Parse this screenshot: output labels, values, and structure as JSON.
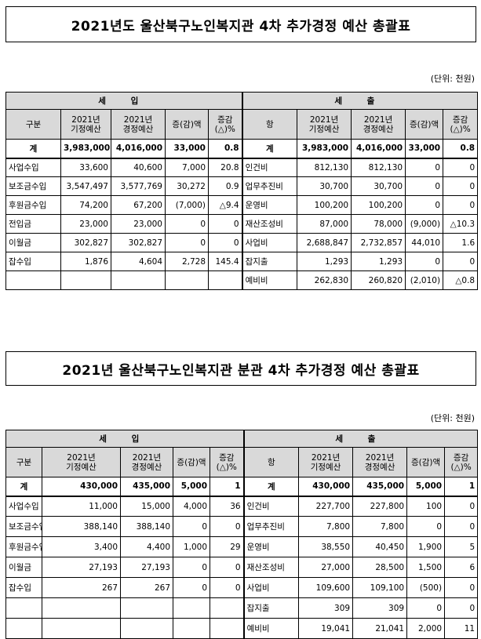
{
  "unit_label": "(단위: 천원)",
  "sections": [
    {
      "title": "2021년도 울산북구노인복지관 4차 추가경정 예산 총괄표",
      "unit": "(단위: 천원)",
      "income_header": "세 입",
      "expense_header": "세 출",
      "columns": {
        "category": "구분",
        "item": "항",
        "orig": "2021년\n기정예산",
        "revised": "2021년\n경정예산",
        "diff": "증(감)액",
        "pct": "증감\n(△)%"
      },
      "total": {
        "label": "계",
        "orig": "3,983,000",
        "revised": "4,016,000",
        "diff": "33,000",
        "pct": "0.8",
        "e_label": "계",
        "e_orig": "3,983,000",
        "e_revised": "4,016,000",
        "e_diff": "33,000",
        "e_pct": "0.8"
      },
      "rows": [
        {
          "i_name": "사업수입",
          "i_orig": "33,600",
          "i_rev": "40,600",
          "i_diff": "7,000",
          "i_pct": "20.8",
          "e_name": "인건비",
          "e_orig": "812,130",
          "e_rev": "812,130",
          "e_diff": "0",
          "e_pct": "0"
        },
        {
          "i_name": "보조금수입",
          "i_orig": "3,547,497",
          "i_rev": "3,577,769",
          "i_diff": "30,272",
          "i_pct": "0.9",
          "e_name": "업무추진비",
          "e_orig": "30,700",
          "e_rev": "30,700",
          "e_diff": "0",
          "e_pct": "0"
        },
        {
          "i_name": "후원금수입",
          "i_orig": "74,200",
          "i_rev": "67,200",
          "i_diff": "(7,000)",
          "i_pct": "△9.4",
          "e_name": "운영비",
          "e_orig": "100,200",
          "e_rev": "100,200",
          "e_diff": "0",
          "e_pct": "0"
        },
        {
          "i_name": "전입금",
          "i_orig": "23,000",
          "i_rev": "23,000",
          "i_diff": "0",
          "i_pct": "0",
          "e_name": "재산조성비",
          "e_orig": "87,000",
          "e_rev": "78,000",
          "e_diff": "(9,000)",
          "e_pct": "△10.3"
        },
        {
          "i_name": "이월금",
          "i_orig": "302,827",
          "i_rev": "302,827",
          "i_diff": "0",
          "i_pct": "0",
          "e_name": "사업비",
          "e_orig": "2,688,847",
          "e_rev": "2,732,857",
          "e_diff": "44,010",
          "e_pct": "1.6"
        },
        {
          "i_name": "잡수입",
          "i_orig": "1,876",
          "i_rev": "4,604",
          "i_diff": "2,728",
          "i_pct": "145.4",
          "e_name": "잡지출",
          "e_orig": "1,293",
          "e_rev": "1,293",
          "e_diff": "0",
          "e_pct": "0"
        },
        {
          "i_name": "",
          "i_orig": "",
          "i_rev": "",
          "i_diff": "",
          "i_pct": "",
          "e_name": "예비비",
          "e_orig": "262,830",
          "e_rev": "260,820",
          "e_diff": "(2,010)",
          "e_pct": "△0.8"
        }
      ]
    },
    {
      "title": "2021년 울산북구노인복지관 분관 4차 추가경정 예산 총괄표",
      "unit": "(단위: 천원)",
      "income_header": "세 입",
      "expense_header": "세 출",
      "columns": {
        "category": "구분",
        "item": "항",
        "orig": "2021년\n기정예산",
        "revised": "2021년\n경정예산",
        "diff": "증(감)액",
        "pct": "증감\n(△)%"
      },
      "total": {
        "label": "계",
        "orig": "430,000",
        "revised": "435,000",
        "diff": "5,000",
        "pct": "1",
        "e_label": "계",
        "e_orig": "430,000",
        "e_revised": "435,000",
        "e_diff": "5,000",
        "e_pct": "1"
      },
      "rows": [
        {
          "i_name": "사업수입",
          "i_orig": "11,000",
          "i_rev": "15,000",
          "i_diff": "4,000",
          "i_pct": "36",
          "e_name": "인건비",
          "e_orig": "227,700",
          "e_rev": "227,800",
          "e_diff": "100",
          "e_pct": "0"
        },
        {
          "i_name": "보조금수입",
          "i_orig": "388,140",
          "i_rev": "388,140",
          "i_diff": "0",
          "i_pct": "0",
          "e_name": "업무추진비",
          "e_orig": "7,800",
          "e_rev": "7,800",
          "e_diff": "0",
          "e_pct": "0"
        },
        {
          "i_name": "후원금수입",
          "i_orig": "3,400",
          "i_rev": "4,400",
          "i_diff": "1,000",
          "i_pct": "29",
          "e_name": "운영비",
          "e_orig": "38,550",
          "e_rev": "40,450",
          "e_diff": "1,900",
          "e_pct": "5"
        },
        {
          "i_name": "이월금",
          "i_orig": "27,193",
          "i_rev": "27,193",
          "i_diff": "0",
          "i_pct": "0",
          "e_name": "재산조성비",
          "e_orig": "27,000",
          "e_rev": "28,500",
          "e_diff": "1,500",
          "e_pct": "6"
        },
        {
          "i_name": "잡수입",
          "i_orig": "267",
          "i_rev": "267",
          "i_diff": "0",
          "i_pct": "0",
          "e_name": "사업비",
          "e_orig": "109,600",
          "e_rev": "109,100",
          "e_diff": "(500)",
          "e_pct": "0"
        },
        {
          "i_name": "",
          "i_orig": "",
          "i_rev": "",
          "i_diff": "",
          "i_pct": "",
          "e_name": "잡지출",
          "e_orig": "309",
          "e_rev": "309",
          "e_diff": "0",
          "e_pct": "0"
        },
        {
          "i_name": "",
          "i_orig": "",
          "i_rev": "",
          "i_diff": "",
          "i_pct": "",
          "e_name": "예비비",
          "e_orig": "19,041",
          "e_rev": "21,041",
          "e_diff": "2,000",
          "e_pct": "11"
        }
      ]
    }
  ]
}
